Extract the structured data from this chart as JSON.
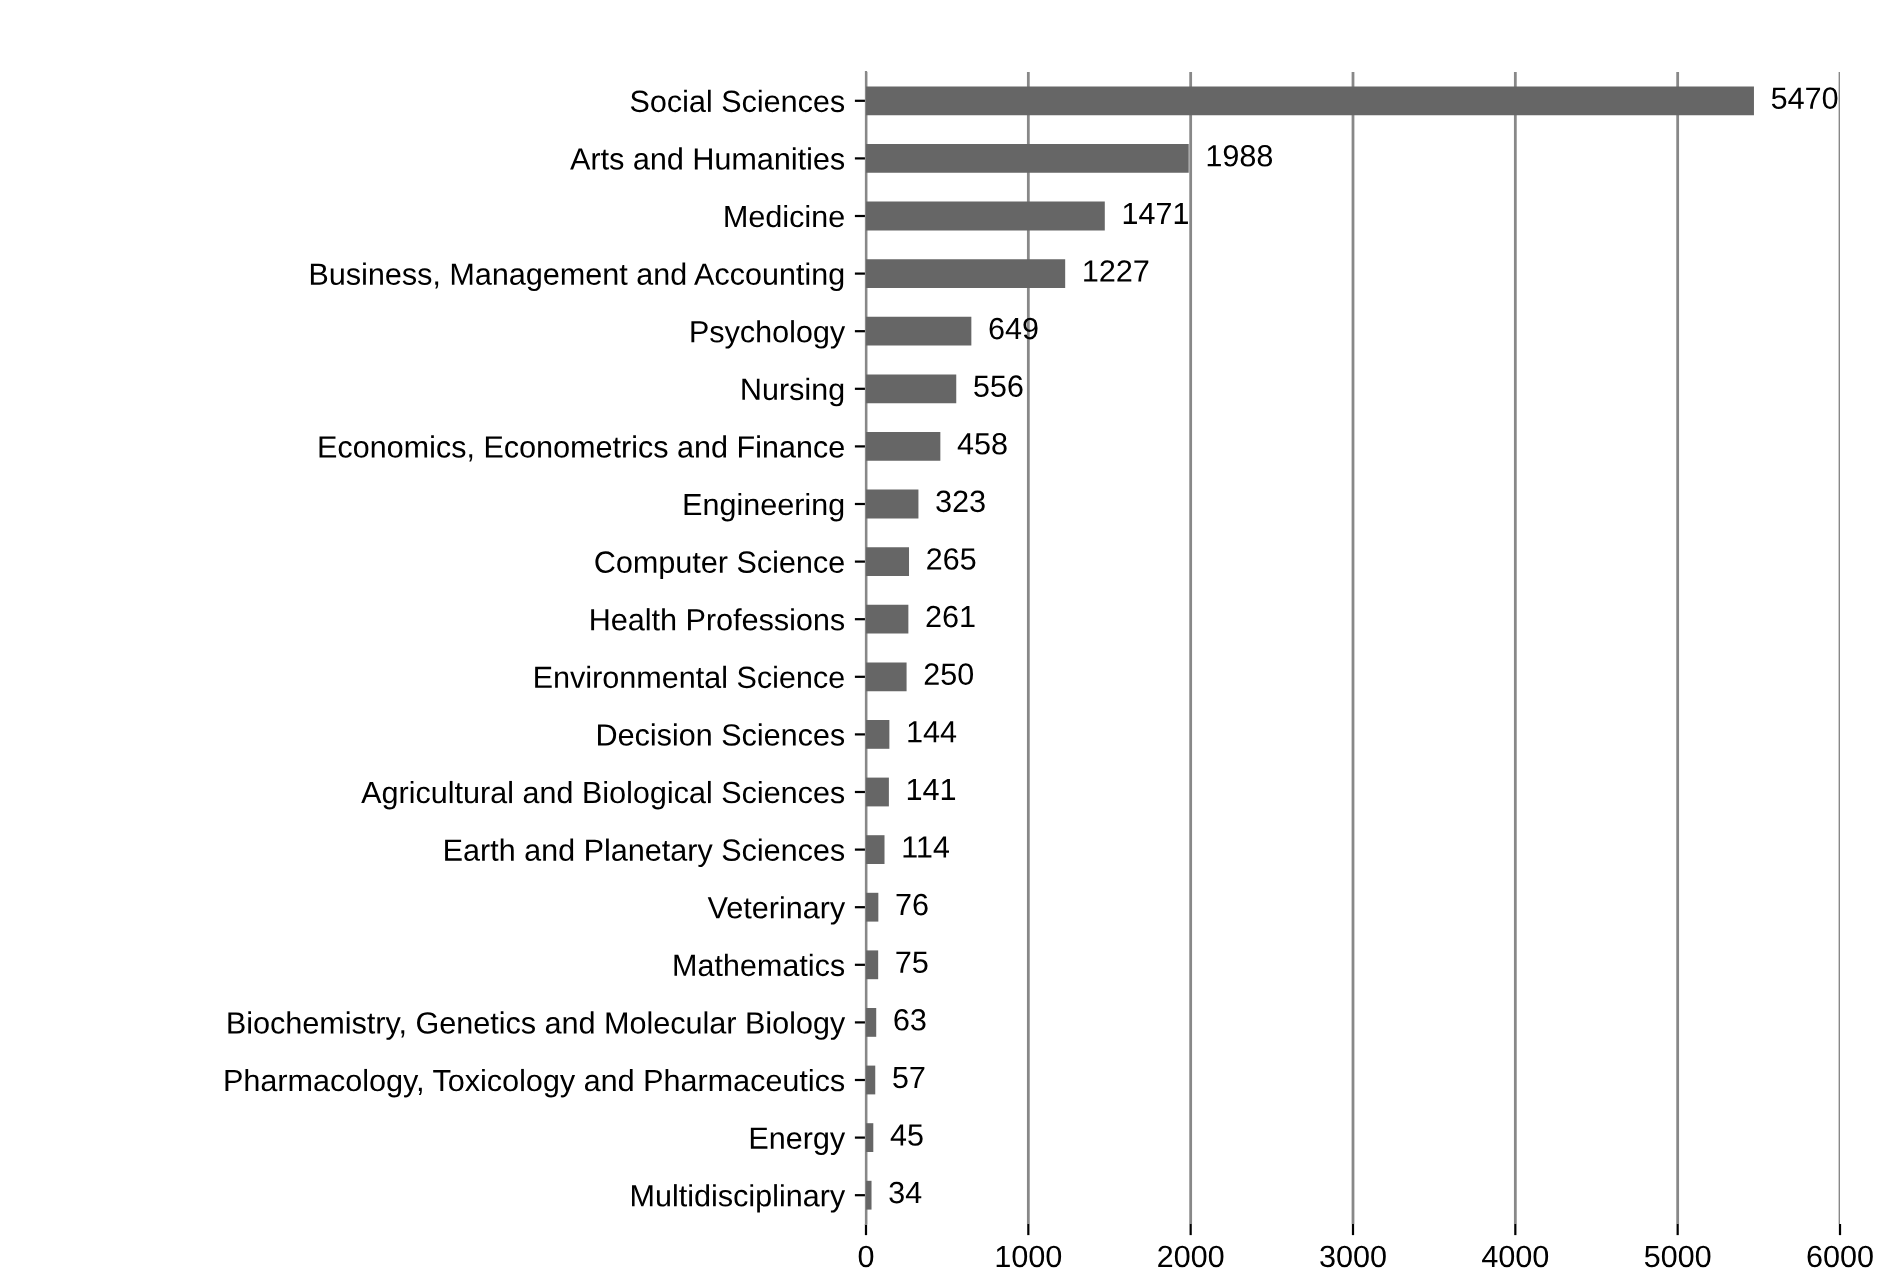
{
  "chart_data": {
    "type": "bar",
    "orientation": "horizontal",
    "categories": [
      "Social Sciences",
      "Arts and Humanities",
      "Medicine",
      "Business, Management and Accounting",
      "Psychology",
      "Nursing",
      "Economics, Econometrics and Finance",
      "Engineering",
      "Computer Science",
      "Health Professions",
      "Environmental Science",
      "Decision Sciences",
      "Agricultural and Biological Sciences",
      "Earth and Planetary Sciences",
      "Veterinary",
      "Mathematics",
      "Biochemistry, Genetics and Molecular Biology",
      "Pharmacology, Toxicology and Pharmaceutics",
      "Energy",
      "Multidisciplinary"
    ],
    "values": [
      5470,
      1988,
      1471,
      1227,
      649,
      556,
      458,
      323,
      265,
      261,
      250,
      144,
      141,
      114,
      76,
      75,
      63,
      57,
      45,
      34
    ],
    "color": "#666666",
    "xlim": [
      0,
      6000
    ],
    "xticks": [
      0,
      1000,
      2000,
      3000,
      4000,
      5000,
      6000
    ],
    "grid": "x",
    "data_labels": true,
    "legend": false
  }
}
